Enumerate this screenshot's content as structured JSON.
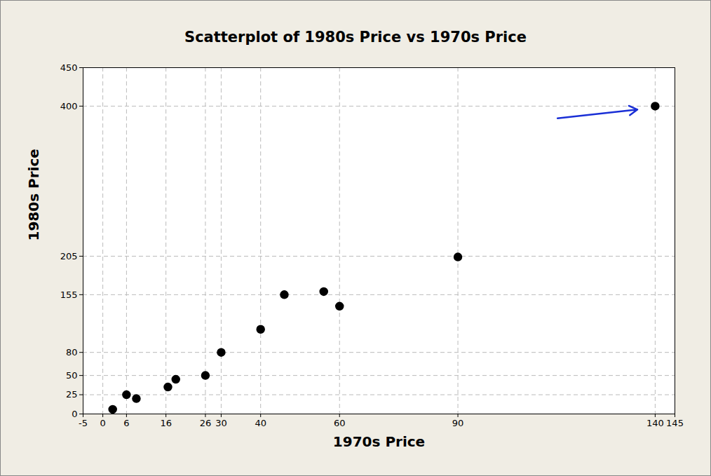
{
  "chart_data": {
    "type": "scatter",
    "title": "Scatterplot of 1980s Price vs 1970s Price",
    "x_label": "1970s Price",
    "y_label": "1980s Price",
    "x": [
      2.5,
      6,
      8.5,
      16.5,
      18.5,
      26,
      30,
      40,
      46,
      56,
      60,
      90,
      140
    ],
    "values": [
      6,
      25,
      20,
      35,
      45,
      50,
      80,
      110,
      155,
      159,
      140,
      204,
      400
    ],
    "color": "#000000",
    "marker": "circle",
    "xlim": [
      -5,
      145
    ],
    "xticks": [
      -5,
      0,
      6,
      16,
      26,
      30,
      40,
      60,
      90,
      140,
      145
    ],
    "ylim": [
      0,
      450
    ],
    "yticks": [
      0,
      25,
      50,
      80,
      155,
      205,
      400,
      450
    ],
    "grid": true
  }
}
